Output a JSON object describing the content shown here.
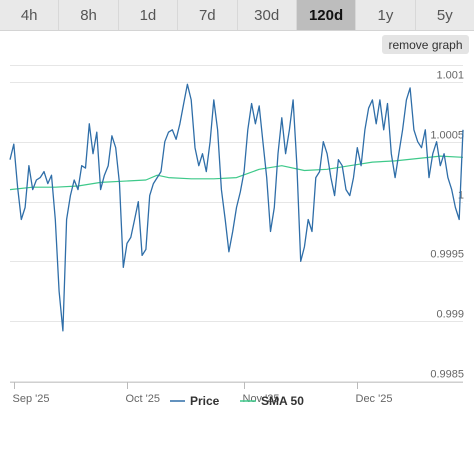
{
  "range_tabs": [
    {
      "label": "4h"
    },
    {
      "label": "8h"
    },
    {
      "label": "1d"
    },
    {
      "label": "7d"
    },
    {
      "label": "30d"
    },
    {
      "label": "120d"
    },
    {
      "label": "1y"
    },
    {
      "label": "5y"
    }
  ],
  "active_range": "120d",
  "remove_graph_label": "remove graph",
  "colors": {
    "price": "#2f6ea8",
    "sma": "#3ec98a",
    "grid": "#e6e6e6"
  },
  "chart_data": {
    "type": "line",
    "title": "",
    "xlabel": "",
    "ylabel": "",
    "x_range": [
      "2025-08-31",
      "2025-12-29"
    ],
    "ylim": [
      0.9985,
      1.0012
    ],
    "y_ticks": [
      {
        "value": 1.001,
        "label": "1.001"
      },
      {
        "value": 1.0005,
        "label": "1.0005"
      },
      {
        "value": 1.0,
        "label": "1"
      },
      {
        "value": 0.9995,
        "label": "0.9995"
      },
      {
        "value": 0.999,
        "label": "0.999"
      },
      {
        "value": 0.9985,
        "label": "0.9985"
      }
    ],
    "x_ticks": [
      {
        "date": "2025-09-01",
        "label": "Sep '25"
      },
      {
        "date": "2025-10-01",
        "label": "Oct '25"
      },
      {
        "date": "2025-11-01",
        "label": "Nov '25"
      },
      {
        "date": "2025-12-01",
        "label": "Dec '25"
      }
    ],
    "legend_position": "bottom",
    "grid": true,
    "series": [
      {
        "name": "Price",
        "x": [
          "2025-08-31",
          "2025-09-01",
          "2025-09-02",
          "2025-09-03",
          "2025-09-04",
          "2025-09-05",
          "2025-09-06",
          "2025-09-07",
          "2025-09-08",
          "2025-09-09",
          "2025-09-10",
          "2025-09-11",
          "2025-09-12",
          "2025-09-13",
          "2025-09-14",
          "2025-09-15",
          "2025-09-16",
          "2025-09-17",
          "2025-09-18",
          "2025-09-19",
          "2025-09-20",
          "2025-09-21",
          "2025-09-22",
          "2025-09-23",
          "2025-09-24",
          "2025-09-25",
          "2025-09-26",
          "2025-09-27",
          "2025-09-28",
          "2025-09-29",
          "2025-09-30",
          "2025-10-01",
          "2025-10-02",
          "2025-10-03",
          "2025-10-04",
          "2025-10-05",
          "2025-10-06",
          "2025-10-07",
          "2025-10-08",
          "2025-10-09",
          "2025-10-10",
          "2025-10-11",
          "2025-10-12",
          "2025-10-13",
          "2025-10-14",
          "2025-10-15",
          "2025-10-16",
          "2025-10-17",
          "2025-10-18",
          "2025-10-19",
          "2025-10-20",
          "2025-10-21",
          "2025-10-22",
          "2025-10-23",
          "2025-10-24",
          "2025-10-25",
          "2025-10-26",
          "2025-10-27",
          "2025-10-28",
          "2025-10-29",
          "2025-10-30",
          "2025-10-31",
          "2025-11-01",
          "2025-11-02",
          "2025-11-03",
          "2025-11-04",
          "2025-11-05",
          "2025-11-06",
          "2025-11-07",
          "2025-11-08",
          "2025-11-09",
          "2025-11-10",
          "2025-11-11",
          "2025-11-12",
          "2025-11-13",
          "2025-11-14",
          "2025-11-15",
          "2025-11-16",
          "2025-11-17",
          "2025-11-18",
          "2025-11-19",
          "2025-11-20",
          "2025-11-21",
          "2025-11-22",
          "2025-11-23",
          "2025-11-24",
          "2025-11-25",
          "2025-11-26",
          "2025-11-27",
          "2025-11-28",
          "2025-11-29",
          "2025-11-30",
          "2025-12-01",
          "2025-12-02",
          "2025-12-03",
          "2025-12-04",
          "2025-12-05",
          "2025-12-06",
          "2025-12-07",
          "2025-12-08",
          "2025-12-09",
          "2025-12-10",
          "2025-12-11",
          "2025-12-12",
          "2025-12-13",
          "2025-12-14",
          "2025-12-15",
          "2025-12-16",
          "2025-12-17",
          "2025-12-18",
          "2025-12-19",
          "2025-12-20",
          "2025-12-21",
          "2025-12-22",
          "2025-12-23",
          "2025-12-24",
          "2025-12-25",
          "2025-12-26",
          "2025-12-27",
          "2025-12-28",
          "2025-12-29"
        ],
        "values": [
          1.00035,
          1.00048,
          1.00012,
          0.99985,
          0.99995,
          1.0003,
          1.0001,
          1.00018,
          1.0002,
          1.00025,
          1.00015,
          1.00022,
          0.99985,
          0.99925,
          0.99892,
          0.99985,
          1.00005,
          1.00018,
          1.0001,
          1.0003,
          1.00028,
          1.00065,
          1.0004,
          1.00058,
          1.0001,
          1.00022,
          1.0003,
          1.00055,
          1.00045,
          1.00015,
          0.99945,
          0.99965,
          0.9997,
          0.99985,
          1.0,
          0.99955,
          0.9996,
          1.00005,
          1.00015,
          1.0002,
          1.00025,
          1.0005,
          1.00058,
          1.0006,
          1.00052,
          1.00065,
          1.00082,
          1.00098,
          1.00085,
          1.00045,
          1.0003,
          1.0004,
          1.00025,
          1.0005,
          1.00085,
          1.0006,
          1.0001,
          0.99985,
          0.99958,
          0.99975,
          0.99995,
          1.00008,
          1.00025,
          1.0006,
          1.00082,
          1.00065,
          1.0008,
          1.0005,
          1.0002,
          0.99975,
          0.99995,
          1.0004,
          1.0007,
          1.0004,
          1.0006,
          1.00085,
          1.0003,
          0.9995,
          0.99962,
          0.99985,
          0.99975,
          1.0002,
          1.00025,
          1.0005,
          1.0004,
          1.0002,
          1.00005,
          1.00035,
          1.0003,
          1.0001,
          1.00005,
          1.0002,
          1.00045,
          1.0003,
          1.0006,
          1.00078,
          1.00085,
          1.00065,
          1.00085,
          1.0006,
          1.00082,
          1.0004,
          1.0002,
          1.0004,
          1.0006,
          1.00085,
          1.00095,
          1.0006,
          1.0005,
          1.00045,
          1.0006,
          1.0002,
          1.0004,
          1.0005,
          1.0003,
          1.0004,
          1.0002,
          1.0001,
          0.99995,
          0.99985,
          1.0006
        ]
      },
      {
        "name": "SMA 50",
        "x": [
          "2025-08-31",
          "2025-09-06",
          "2025-09-12",
          "2025-09-18",
          "2025-09-24",
          "2025-09-30",
          "2025-10-06",
          "2025-10-09",
          "2025-10-12",
          "2025-10-18",
          "2025-10-24",
          "2025-10-30",
          "2025-11-05",
          "2025-11-11",
          "2025-11-17",
          "2025-11-23",
          "2025-11-29",
          "2025-12-05",
          "2025-12-11",
          "2025-12-17",
          "2025-12-23",
          "2025-12-29"
        ],
        "values": [
          1.0001,
          1.00012,
          1.00012,
          1.00013,
          1.00016,
          1.00017,
          1.00018,
          1.00022,
          1.0002,
          1.00019,
          1.00019,
          1.0002,
          1.00027,
          1.0003,
          1.00026,
          1.00027,
          1.0003,
          1.00033,
          1.00034,
          1.00036,
          1.00038,
          1.00037
        ]
      }
    ]
  }
}
